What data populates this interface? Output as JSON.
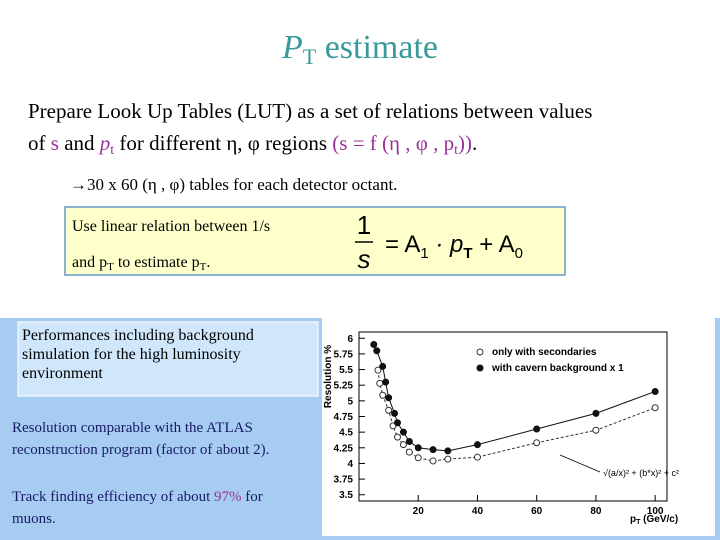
{
  "title": [
    "P",
    "T",
    " estimate"
  ],
  "body": {
    "line1": "Prepare Look Up Tables (LUT) as a set of relations between values",
    "line2": [
      "of ",
      "s",
      " and ",
      "p",
      "t",
      " for different ",
      "η, φ",
      " regions ",
      "(s = f (η , φ , p",
      "t",
      "))",
      "."
    ]
  },
  "bullet": [
    "→",
    "30 x 60  (η , φ) tables for each detector octant."
  ],
  "box": {
    "line1": "Use linear relation between 1/s",
    "line2": [
      "and p",
      "T",
      "   to estimate  p",
      "T",
      "."
    ],
    "formula": {
      "num": "1",
      "den": "s",
      "rhs": [
        "= A",
        "1",
        " · p",
        "T",
        " + A",
        "0"
      ]
    }
  },
  "panel": {
    "performance": [
      "Performances including background",
      "simulation for the high luminosity",
      "environment"
    ],
    "resolution": [
      "Resolution comparable with the ATLAS",
      "reconstruction program (factor of about 2)."
    ],
    "tracking": [
      "Track finding efficiency of about ",
      "97%",
      " for",
      "muons."
    ]
  },
  "plot": {
    "type": "scatter",
    "y_label": "Resolution %",
    "x_label": [
      "p",
      "T",
      " (GeV/c)"
    ],
    "fit_label": "√(a/x)² + (b*x)² + c²",
    "xlim": [
      0,
      104
    ],
    "ylim": [
      3.4,
      6.1
    ],
    "xticks": [
      20,
      40,
      60,
      80,
      100
    ],
    "yticks": [
      3.5,
      3.75,
      4,
      4.25,
      4.5,
      4.75,
      5,
      5.25,
      5.5,
      5.75,
      6
    ],
    "series": [
      {
        "name": "only with secondaries",
        "marker": "open",
        "color": "#333333",
        "x": [
          6.4,
          7,
          8,
          10,
          11.5,
          13,
          15,
          17,
          20,
          25,
          30,
          40,
          60,
          80,
          100
        ],
        "values": [
          5.49,
          5.28,
          5.09,
          4.85,
          4.6,
          4.42,
          4.3,
          4.18,
          4.09,
          4.04,
          4.07,
          4.1,
          4.33,
          4.53,
          4.89
        ]
      },
      {
        "name": "with cavern background x 1",
        "marker": "filled",
        "color": "#111111",
        "x": [
          5,
          6,
          8,
          9,
          10,
          12,
          13,
          15,
          17,
          20,
          25,
          30,
          40,
          60,
          80,
          100
        ],
        "values": [
          5.9,
          5.8,
          5.55,
          5.3,
          5.05,
          4.8,
          4.65,
          4.5,
          4.35,
          4.25,
          4.22,
          4.2,
          4.3,
          4.55,
          4.8,
          5.15
        ]
      }
    ]
  }
}
